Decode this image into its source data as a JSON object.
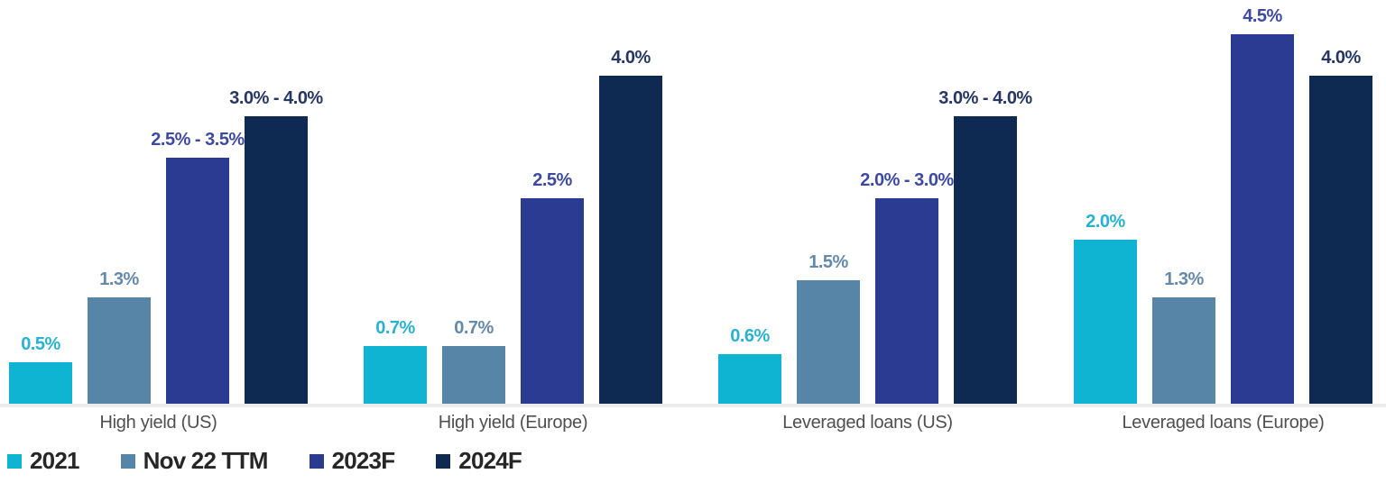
{
  "chart_data": {
    "type": "bar",
    "title": "",
    "xlabel": "",
    "ylabel": "",
    "unit": "%",
    "grid": false,
    "legend_position": "bottom-left",
    "ylim": [
      0,
      4.9
    ],
    "axis_line_color": "#ececec",
    "category_label_color": "#4f4f4f",
    "legend_text_color": "#262626",
    "categories": [
      "High yield (US)",
      "High yield (Europe)",
      "Leveraged loans (US)",
      "Leveraged loans (Europe)"
    ],
    "series": [
      {
        "name": "2021",
        "color": "#10b4d3",
        "label_color": "#29b2d0",
        "values": [
          0.5,
          0.7,
          0.6,
          2.0
        ],
        "labels": [
          "0.5%",
          "0.7%",
          "0.6%",
          "2.0%"
        ]
      },
      {
        "name": "Nov 22 TTM",
        "color": "#5685a8",
        "label_color": "#6589a9",
        "values": [
          1.3,
          0.7,
          1.5,
          1.3
        ],
        "labels": [
          "1.3%",
          "0.7%",
          "1.5%",
          "1.3%"
        ]
      },
      {
        "name": "2023F",
        "color": "#2b3b92",
        "label_color": "#3e4aa0",
        "values": [
          3.0,
          2.5,
          2.5,
          4.5
        ],
        "labels": [
          "2.5% - 3.5%",
          "2.5%",
          "2.0% - 3.0%",
          "4.5%"
        ]
      },
      {
        "name": "2024F",
        "color": "#0e2a52",
        "label_color": "#273763",
        "values": [
          3.5,
          4.0,
          3.5,
          4.0
        ],
        "labels": [
          "3.0% - 4.0%",
          "4.0%",
          "3.0% - 4.0%",
          "4.0%"
        ]
      }
    ]
  },
  "layout_note_values_are_plotted_midpoints_of_label_ranges": true
}
